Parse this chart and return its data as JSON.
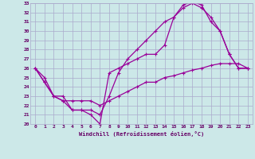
{
  "xlabel": "Windchill (Refroidissement éolien,°C)",
  "background_color": "#cce8e8",
  "line_color": "#990099",
  "grid_color": "#aaaacc",
  "font_color": "#660066",
  "xlim": [
    -0.5,
    23.5
  ],
  "ylim": [
    20,
    33
  ],
  "yticks": [
    20,
    21,
    22,
    23,
    24,
    25,
    26,
    27,
    28,
    29,
    30,
    31,
    32,
    33
  ],
  "xticks": [
    0,
    1,
    2,
    3,
    4,
    5,
    6,
    7,
    8,
    9,
    10,
    11,
    12,
    13,
    14,
    15,
    16,
    17,
    18,
    19,
    20,
    21,
    22,
    23
  ],
  "line1_x": [
    0,
    1,
    2,
    3,
    4,
    5,
    6,
    7,
    8,
    9,
    10,
    11,
    12,
    13,
    14,
    15,
    16,
    17,
    18,
    19,
    20,
    21,
    22,
    23
  ],
  "line1_y": [
    26,
    25,
    23,
    23,
    21.5,
    21.5,
    21,
    20,
    25.5,
    26,
    26.5,
    27,
    27.5,
    27.5,
    28.5,
    31.5,
    32.5,
    33,
    32.5,
    31.5,
    30,
    27.5,
    26,
    26
  ],
  "line2_x": [
    0,
    1,
    2,
    3,
    4,
    5,
    6,
    7,
    8,
    9,
    10,
    11,
    12,
    13,
    14,
    15,
    16,
    17,
    18,
    19,
    20,
    21,
    22,
    23
  ],
  "line2_y": [
    26,
    24.5,
    23,
    22.5,
    21.5,
    21.5,
    21.5,
    21,
    23,
    25.5,
    27,
    28,
    29,
    30,
    31,
    31.5,
    32.8,
    33.2,
    32.8,
    31,
    30,
    27.5,
    26,
    26
  ],
  "line3_x": [
    0,
    1,
    2,
    3,
    4,
    5,
    6,
    7,
    8,
    9,
    10,
    11,
    12,
    13,
    14,
    15,
    16,
    17,
    18,
    19,
    20,
    21,
    22,
    23
  ],
  "line3_y": [
    26,
    24.5,
    23,
    22.5,
    22.5,
    22.5,
    22.5,
    22,
    22.5,
    23,
    23.5,
    24,
    24.5,
    24.5,
    25,
    25.2,
    25.5,
    25.8,
    26,
    26.3,
    26.5,
    26.5,
    26.5,
    26
  ]
}
